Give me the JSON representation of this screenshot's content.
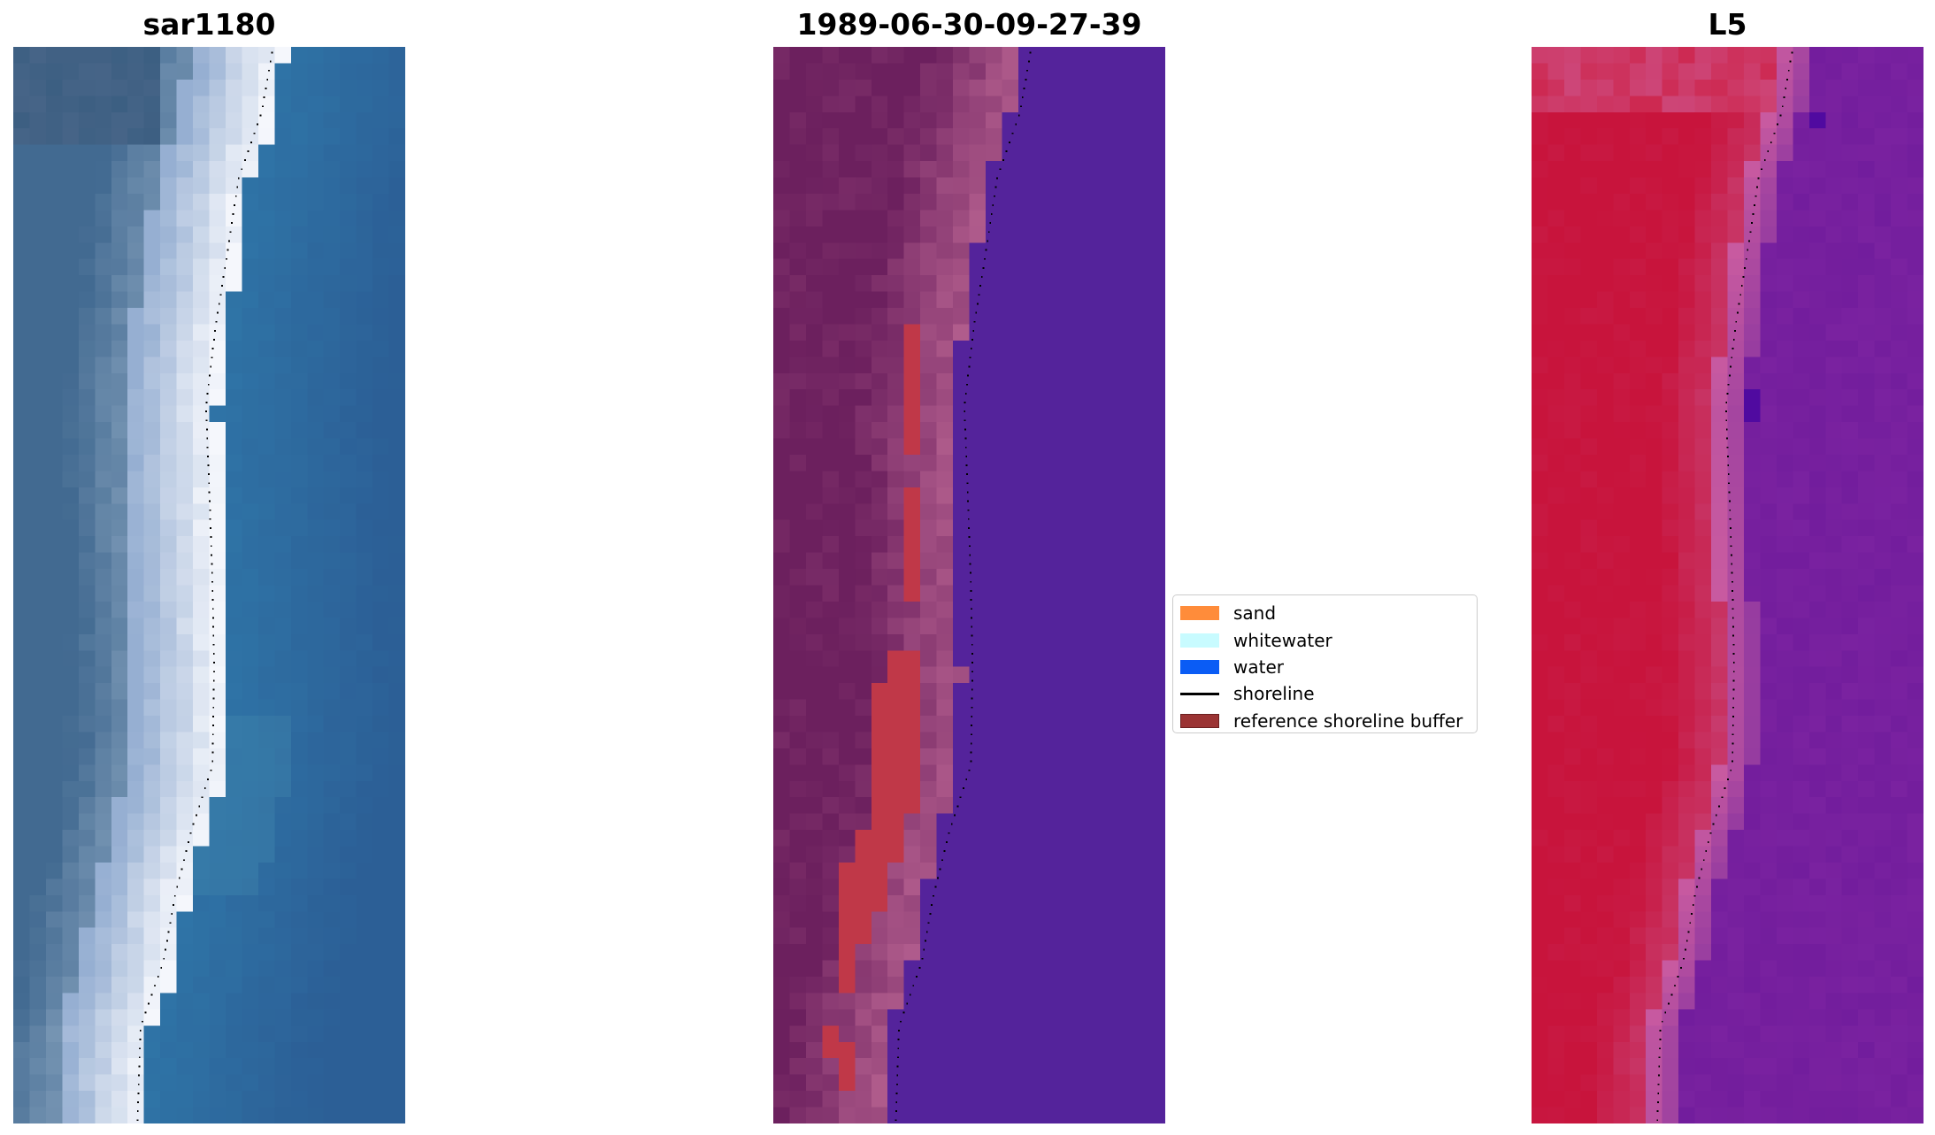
{
  "panels": [
    {
      "title": "sar1180",
      "image": "satellite RGB image of beach and sea",
      "colormap": "blue-white"
    },
    {
      "title": "1989-06-30-09-27-39",
      "image": "pixel classification overlay",
      "colormap": "purple-red"
    },
    {
      "title": "L5",
      "image": "index image",
      "colormap": "red-purple"
    }
  ],
  "legend": {
    "items": [
      {
        "label": "sand",
        "color": "#ff8c3a",
        "kind": "patch"
      },
      {
        "label": "whitewater",
        "color": "#c8fbff",
        "kind": "patch"
      },
      {
        "label": "water",
        "color": "#0a5cf5",
        "kind": "patch"
      },
      {
        "label": "shoreline",
        "color": "#000000",
        "kind": "line"
      },
      {
        "label": "reference shoreline buffer",
        "color": "#9b3434",
        "kind": "patch"
      }
    ]
  },
  "colors": {
    "water_class": "#54239b",
    "buffer": "#c03848",
    "sand_panel3": "#c8143c",
    "water_panel3": "#7a22a0"
  }
}
